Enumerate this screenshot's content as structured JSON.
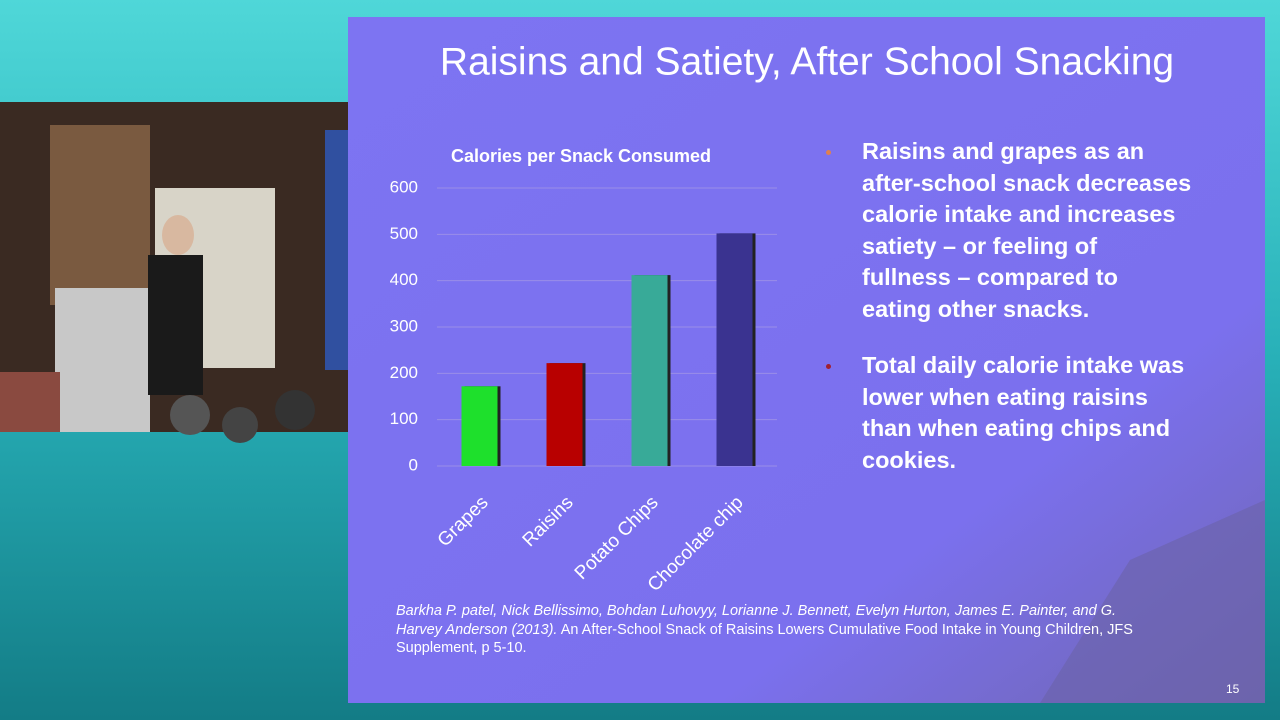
{
  "slide_title": "Raisins and Satiety, After School Snacking",
  "chart_data": {
    "type": "bar",
    "title": "Calories per Snack Consumed",
    "categories": [
      "Grapes",
      "Raisins",
      "Potato Chips",
      "Chocolate chip"
    ],
    "values": [
      172,
      222,
      412,
      502
    ],
    "colors": [
      "#1ee02c",
      "#b80000",
      "#38aa98",
      "#3a3390"
    ],
    "ylim": [
      0,
      600
    ],
    "yticks": [
      0,
      100,
      200,
      300,
      400,
      500,
      600
    ],
    "grid": true
  },
  "bullets": [
    "Raisins and grapes as an after-school snack decreases calorie intake and increases satiety – or feeling of fullness – compared to eating other snacks.",
    "Total daily calorie intake was lower when eating raisins than when eating chips and cookies."
  ],
  "citation": {
    "authors": "Barkha P. patel, Nick Bellissimo, Bohdan Luhovyy, Lorianne J. Bennett, Evelyn Hurton, James E. Painter, and G. Harvey Anderson (2013).",
    "text": " An After-School Snack of Raisins Lowers Cumulative Food Intake in Young Children, JFS Supplement, p 5-10."
  },
  "page_number": "15"
}
